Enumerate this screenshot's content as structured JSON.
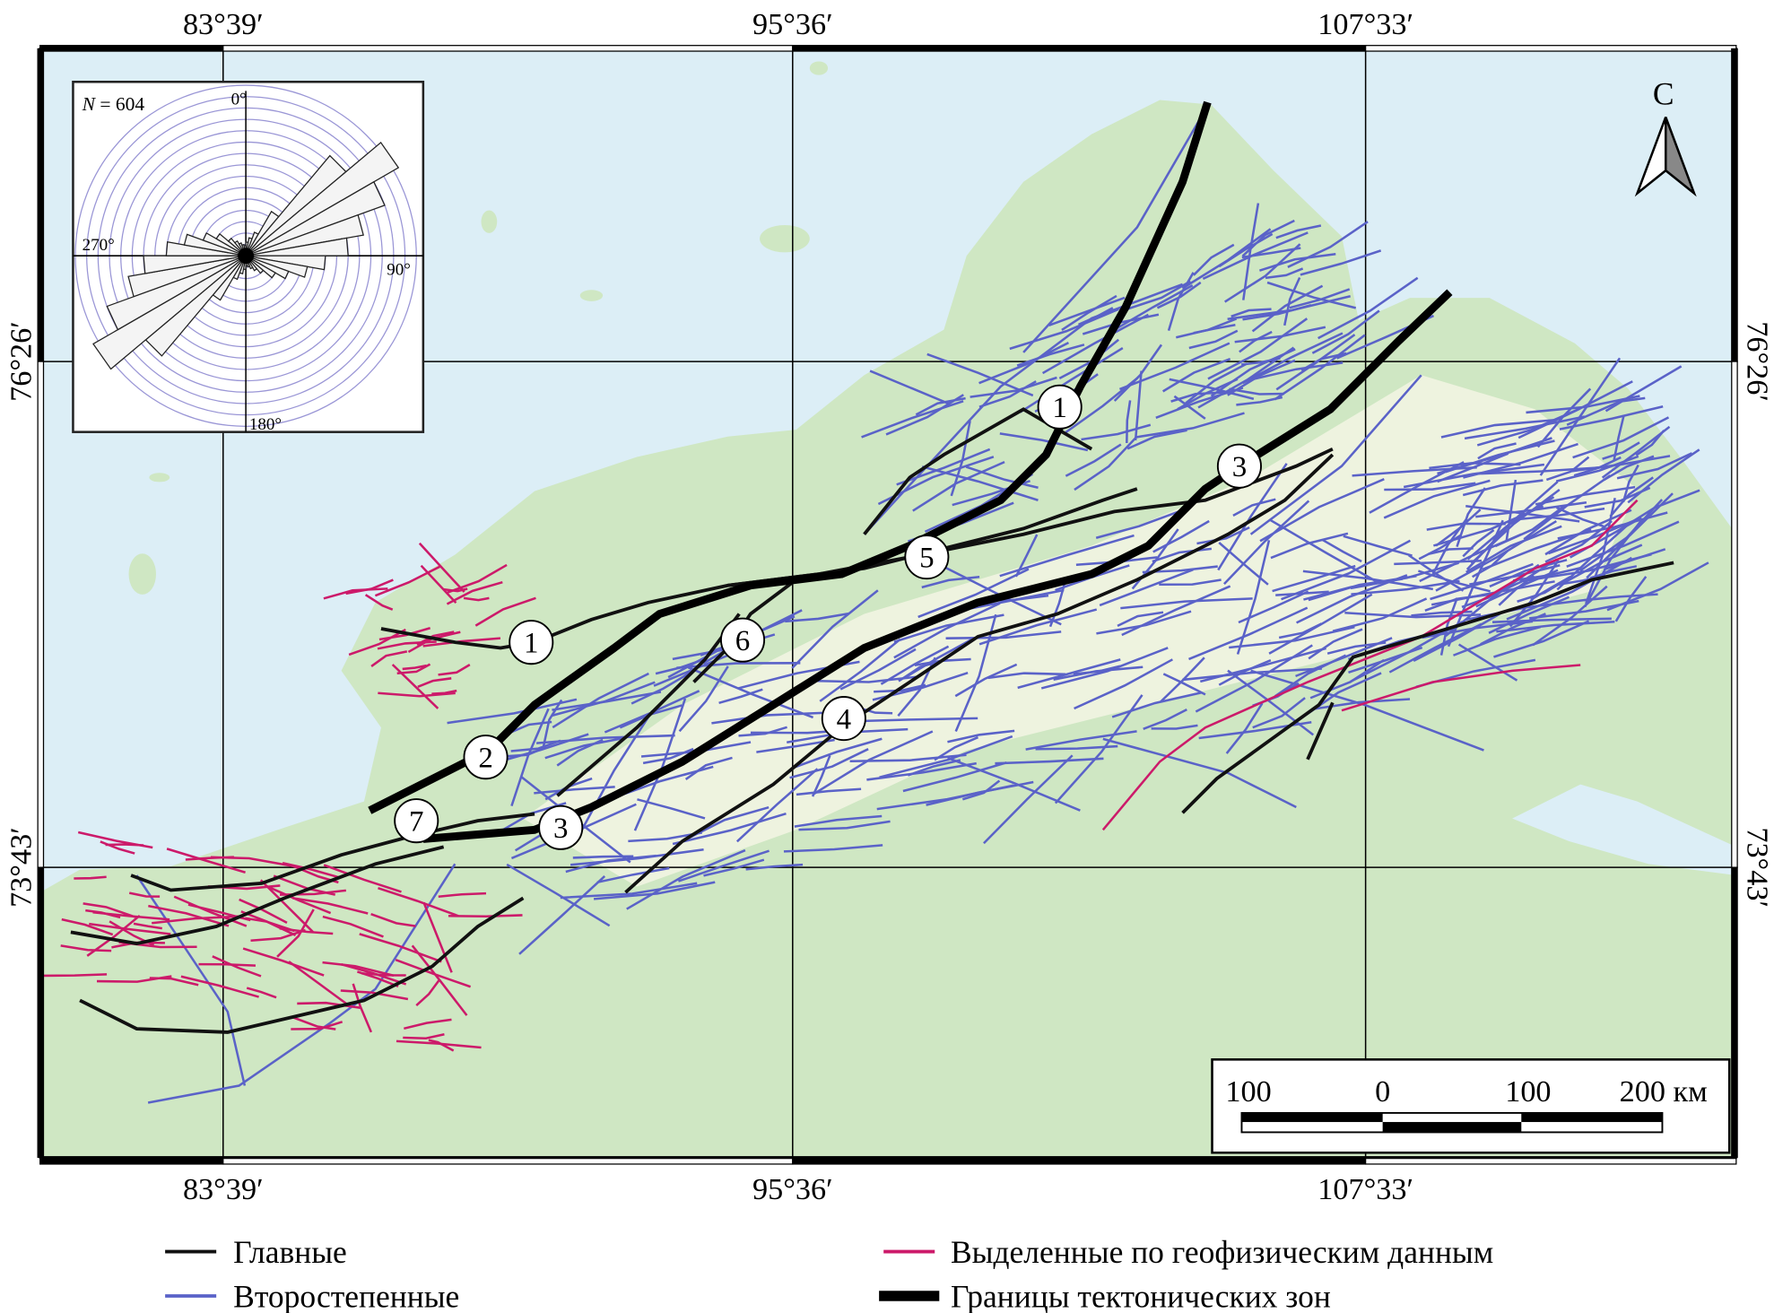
{
  "map": {
    "colors": {
      "sea": "#dceef6",
      "land": "#cfe7c3",
      "highland": "#eef3df",
      "main_fault": "#111111",
      "secondary_fault": "#5a62c8",
      "geophysical_fault": "#cc1a6a",
      "zone_boundary": "#000000"
    },
    "longitude_labels": [
      "83°39′",
      "95°36′",
      "107°33′"
    ],
    "latitude_labels": [
      "76°26′",
      "73°43′"
    ],
    "north_label": "С",
    "north_icon": "north-arrow"
  },
  "rose": {
    "n_label": "N = 604",
    "n_symbol": "N",
    "n_value": "= 604",
    "angle_labels": {
      "north": "0°",
      "east": "90°",
      "south": "180°",
      "west": "270°"
    },
    "bin_width_deg": 10,
    "ring_count": 15,
    "bins": [
      {
        "az": 5,
        "len": 1.2
      },
      {
        "az": 15,
        "len": 1.6
      },
      {
        "az": 25,
        "len": 2.2
      },
      {
        "az": 35,
        "len": 4.5
      },
      {
        "az": 45,
        "len": 11.5
      },
      {
        "az": 55,
        "len": 15.5
      },
      {
        "az": 65,
        "len": 13
      },
      {
        "az": 75,
        "len": 10.5
      },
      {
        "az": 85,
        "len": 9
      },
      {
        "az": 95,
        "len": 7
      },
      {
        "az": 105,
        "len": 5.5
      },
      {
        "az": 115,
        "len": 4
      },
      {
        "az": 125,
        "len": 3
      },
      {
        "az": 135,
        "len": 2
      },
      {
        "az": 145,
        "len": 1.5
      },
      {
        "az": 155,
        "len": 1.2
      },
      {
        "az": 165,
        "len": 1
      },
      {
        "az": 175,
        "len": 0.9
      }
    ]
  },
  "fault_labels": [
    "1",
    "1",
    "2",
    "3",
    "3",
    "4",
    "5",
    "6",
    "7"
  ],
  "scale_bar": {
    "labels": [
      "100",
      "0",
      "100",
      "200 км"
    ]
  },
  "legend": [
    {
      "label": "Главные",
      "type": "main"
    },
    {
      "label": "Второстепенные",
      "type": "secondary"
    },
    {
      "label": "Выделенные по геофизическим данным",
      "type": "geophysical"
    },
    {
      "label": "Границы тектонических зон",
      "type": "zone_boundary"
    }
  ]
}
